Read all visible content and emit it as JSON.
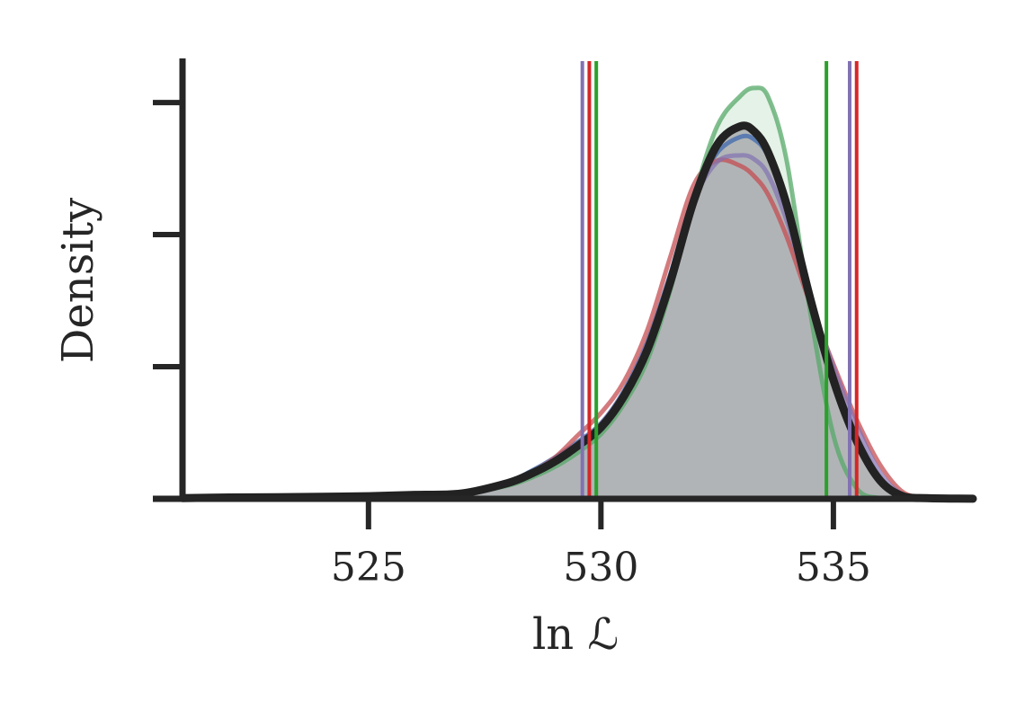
{
  "chart_data": {
    "type": "area",
    "title": "",
    "xlabel": "ln ℒ",
    "ylabel": "Density",
    "xlim": [
      521,
      538
    ],
    "ylim": [
      0,
      0.33
    ],
    "x_ticks": [
      525,
      530,
      535
    ],
    "x_tick_labels": [
      "525",
      "530",
      "535"
    ],
    "y_ticks": [
      0.1,
      0.2,
      0.3
    ],
    "y_tick_labels": [
      "",
      "",
      ""
    ],
    "grid": false,
    "legend": "none",
    "x": [
      521,
      522,
      523,
      524,
      525,
      526,
      527,
      528,
      528.5,
      529,
      529.5,
      530,
      530.5,
      531,
      531.5,
      532,
      532.5,
      533,
      533.3,
      533.6,
      534,
      534.5,
      535,
      535.5,
      536,
      536.5,
      537,
      537.5,
      538
    ],
    "series": [
      {
        "color": "#222222",
        "filled": true,
        "values": [
          0.0005,
          0.001,
          0.0012,
          0.0015,
          0.002,
          0.003,
          0.004,
          0.012,
          0.019,
          0.028,
          0.04,
          0.054,
          0.078,
          0.113,
          0.165,
          0.226,
          0.268,
          0.282,
          0.278,
          0.262,
          0.222,
          0.152,
          0.09,
          0.044,
          0.014,
          0.002,
          0.0005,
          0.0002,
          0.0001
        ]
      },
      {
        "color": "#4c72b0",
        "filled": false,
        "values": [
          0.0005,
          0.001,
          0.0012,
          0.0015,
          0.002,
          0.003,
          0.004,
          0.013,
          0.021,
          0.031,
          0.043,
          0.057,
          0.082,
          0.119,
          0.171,
          0.23,
          0.262,
          0.274,
          0.272,
          0.259,
          0.22,
          0.153,
          0.092,
          0.046,
          0.015,
          0.002,
          0.0005,
          0.0002,
          0.0001
        ]
      },
      {
        "color": "#55a868",
        "filled": true,
        "values": [
          0.0005,
          0.001,
          0.0012,
          0.0015,
          0.002,
          0.003,
          0.004,
          0.01,
          0.016,
          0.024,
          0.035,
          0.049,
          0.072,
          0.105,
          0.159,
          0.228,
          0.282,
          0.305,
          0.311,
          0.304,
          0.255,
          0.142,
          0.048,
          0.008,
          0.0005,
          0.0001,
          0.0001,
          0.0001,
          0.0001
        ]
      },
      {
        "color": "#c44e52",
        "filled": false,
        "values": [
          0.0005,
          0.001,
          0.0012,
          0.0015,
          0.002,
          0.003,
          0.004,
          0.012,
          0.02,
          0.031,
          0.048,
          0.065,
          0.089,
          0.128,
          0.184,
          0.238,
          0.256,
          0.252,
          0.244,
          0.23,
          0.198,
          0.148,
          0.102,
          0.06,
          0.026,
          0.005,
          0.001,
          0.0002,
          0.0001
        ]
      },
      {
        "color": "#8172b2",
        "filled": true,
        "values": [
          0.0005,
          0.001,
          0.0012,
          0.0015,
          0.002,
          0.003,
          0.004,
          0.012,
          0.02,
          0.03,
          0.042,
          0.057,
          0.081,
          0.118,
          0.17,
          0.226,
          0.255,
          0.26,
          0.257,
          0.245,
          0.21,
          0.152,
          0.1,
          0.056,
          0.02,
          0.003,
          0.0005,
          0.0002,
          0.0001
        ]
      }
    ],
    "vertical_lines": [
      {
        "x": 529.6,
        "color": "#8172b2"
      },
      {
        "x": 529.75,
        "color": "#d62728"
      },
      {
        "x": 529.9,
        "color": "#2ca02c"
      },
      {
        "x": 534.85,
        "color": "#2ca02c"
      },
      {
        "x": 535.35,
        "color": "#8172b2"
      },
      {
        "x": 535.5,
        "color": "#d62728"
      }
    ]
  }
}
